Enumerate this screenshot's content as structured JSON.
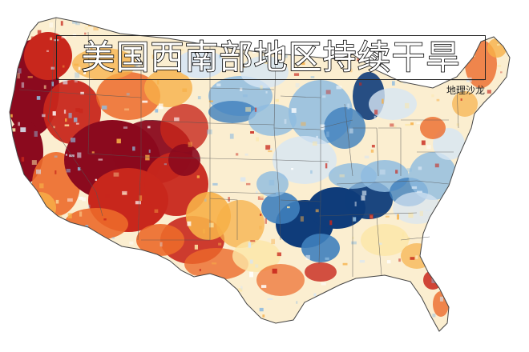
{
  "map": {
    "title": "美国西南部地区持续干旱",
    "source_label": "地理沙龙",
    "colors": {
      "extreme_dry": "#8b0a1e",
      "severe_dry": "#c8271c",
      "moderate_dry": "#ec6a2a",
      "abnormal_dry": "#f7b048",
      "slight_dry": "#fce6a6",
      "normal": "#ffffff",
      "slight_wet": "#d7e6f4",
      "moderate_wet": "#8fbce0",
      "wet": "#3f7fbd",
      "very_wet": "#0f3c7a",
      "boundary": "#555555"
    }
  }
}
